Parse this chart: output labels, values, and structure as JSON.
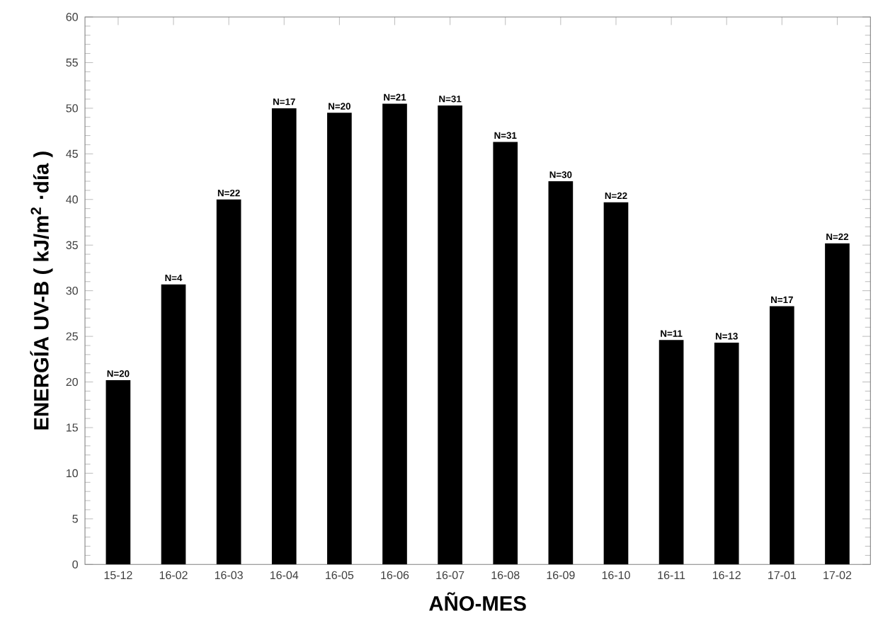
{
  "chart_data": {
    "type": "bar",
    "xlabel": "AÑO-MES",
    "ylabel": "ENERGÍA UV-B ( kJ/m$^{2}$ ·día )",
    "categories": [
      "15-12",
      "16-02",
      "16-03",
      "16-04",
      "16-05",
      "16-06",
      "16-07",
      "16-08",
      "16-09",
      "16-10",
      "16-11",
      "16-12",
      "17-01",
      "17-02"
    ],
    "values": [
      20.2,
      30.7,
      40.0,
      50.0,
      49.5,
      50.5,
      50.3,
      46.3,
      42.0,
      39.7,
      24.6,
      24.3,
      28.3,
      35.2
    ],
    "color": "#000000",
    "ylim": [
      0,
      60
    ],
    "yticks": [
      0,
      5,
      10,
      15,
      20,
      25,
      30,
      35,
      40,
      45,
      50,
      55,
      60
    ],
    "annotations": [
      {
        "text": "N=20",
        "x": "15-12",
        "y": 20.2
      },
      {
        "text": "N=4",
        "x": "16-02",
        "y": 30.7
      },
      {
        "text": "N=22",
        "x": "16-03",
        "y": 40.0
      },
      {
        "text": "N=17",
        "x": "16-04",
        "y": 50.0
      },
      {
        "text": "N=20",
        "x": "16-05",
        "y": 49.5
      },
      {
        "text": "N=21",
        "x": "16-06",
        "y": 50.5
      },
      {
        "text": "N=31",
        "x": "16-07",
        "y": 50.3
      },
      {
        "text": "N=31",
        "x": "16-08",
        "y": 46.3
      },
      {
        "text": "N=30",
        "x": "16-09",
        "y": 42.0
      },
      {
        "text": "N=22",
        "x": "16-10",
        "y": 39.7
      },
      {
        "text": "N=11",
        "x": "16-11",
        "y": 24.6
      },
      {
        "text": "N=13",
        "x": "16-12",
        "y": 24.3
      },
      {
        "text": "N=17",
        "x": "17-01",
        "y": 28.3
      },
      {
        "text": "N=22",
        "x": "17-02",
        "y": 35.2
      }
    ]
  }
}
